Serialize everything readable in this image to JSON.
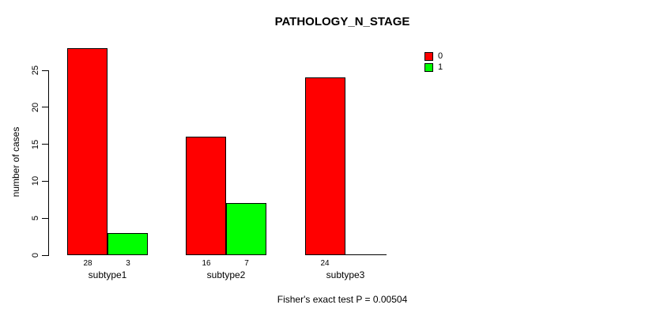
{
  "chart_data": {
    "type": "bar",
    "title": "PATHOLOGY_N_STAGE",
    "xlabel": "",
    "ylabel": "number of cases",
    "categories": [
      "subtype1",
      "subtype2",
      "subtype3"
    ],
    "series": [
      {
        "name": "0",
        "color": "#FF0000",
        "values": [
          28,
          16,
          24
        ]
      },
      {
        "name": "1",
        "color": "#00FF00",
        "values": [
          3,
          7,
          0
        ]
      }
    ],
    "bar_value_labels": [
      [
        "28",
        "3"
      ],
      [
        "16",
        "7"
      ],
      [
        "24",
        ""
      ]
    ],
    "yticks": [
      0,
      5,
      10,
      15,
      20,
      25
    ],
    "ylim": [
      0,
      25
    ],
    "grid": false,
    "legend_position": "top-right",
    "footnote": "Fisher's exact test P = 0.00504",
    "axis_color": "#000000",
    "bar_border_color": "#000000",
    "background_color": "#FFFFFF"
  }
}
